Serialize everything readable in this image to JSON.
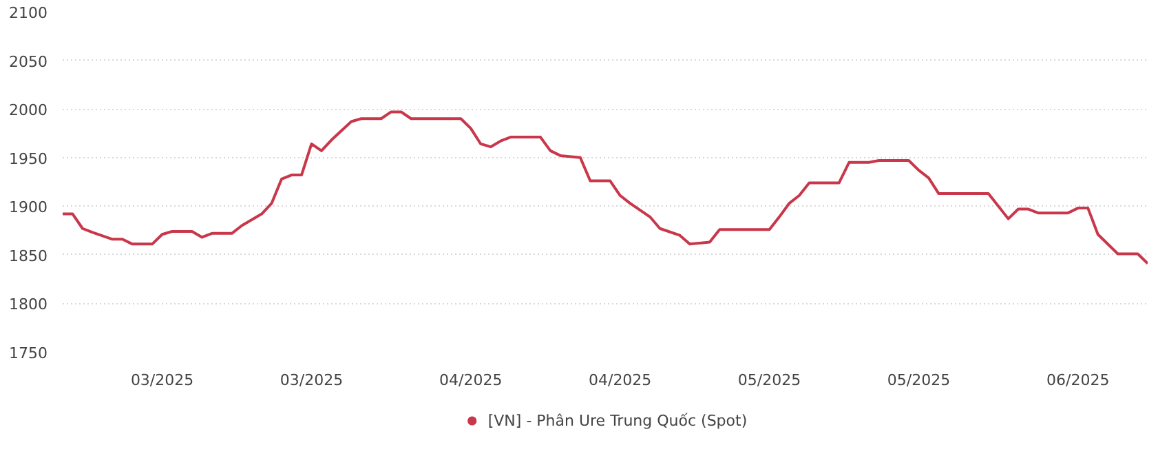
{
  "chart_data": {
    "type": "line",
    "x": [
      "2025-02-19",
      "2025-02-20",
      "2025-02-21",
      "2025-02-22",
      "2025-02-24",
      "2025-02-25",
      "2025-02-26",
      "2025-02-28",
      "2025-03-01",
      "2025-03-02",
      "2025-03-04",
      "2025-03-05",
      "2025-03-06",
      "2025-03-08",
      "2025-03-09",
      "2025-03-11",
      "2025-03-12",
      "2025-03-13",
      "2025-03-14",
      "2025-03-15",
      "2025-03-16",
      "2025-03-17",
      "2025-03-18",
      "2025-03-20",
      "2025-03-21",
      "2025-03-23",
      "2025-03-24",
      "2025-03-25",
      "2025-03-26",
      "2025-03-31",
      "2025-04-01",
      "2025-04-02",
      "2025-04-03",
      "2025-04-04",
      "2025-04-05",
      "2025-04-08",
      "2025-04-09",
      "2025-04-10",
      "2025-04-12",
      "2025-04-13",
      "2025-04-15",
      "2025-04-16",
      "2025-04-17",
      "2025-04-19",
      "2025-04-20",
      "2025-04-22",
      "2025-04-23",
      "2025-04-25",
      "2025-04-26",
      "2025-05-01",
      "2025-05-02",
      "2025-05-03",
      "2025-05-04",
      "2025-05-05",
      "2025-05-08",
      "2025-05-09",
      "2025-05-11",
      "2025-05-12",
      "2025-05-15",
      "2025-05-16",
      "2025-05-17",
      "2025-05-18",
      "2025-05-23",
      "2025-05-25",
      "2025-05-26",
      "2025-05-27",
      "2025-05-28",
      "2025-05-31",
      "2025-06-01",
      "2025-06-02",
      "2025-06-03",
      "2025-06-05",
      "2025-06-07",
      "2025-06-08"
    ],
    "series": [
      {
        "name": "[VN] - Phân Ure Trung Quốc (Spot)",
        "color": "#c8374a",
        "values": [
          1892,
          1892,
          1877,
          1873,
          1866,
          1866,
          1861,
          1861,
          1871,
          1874,
          1874,
          1868,
          1872,
          1872,
          1880,
          1892,
          1903,
          1928,
          1932,
          1932,
          1964,
          1957,
          1968,
          1987,
          1990,
          1990,
          1997,
          1997,
          1990,
          1990,
          1980,
          1964,
          1961,
          1967,
          1971,
          1971,
          1957,
          1952,
          1950,
          1926,
          1926,
          1911,
          1903,
          1889,
          1877,
          1870,
          1861,
          1863,
          1876,
          1876,
          1889,
          1903,
          1911,
          1924,
          1924,
          1945,
          1945,
          1947,
          1947,
          1937,
          1929,
          1913,
          1913,
          1887,
          1897,
          1897,
          1893,
          1893,
          1898,
          1898,
          1871,
          1851,
          1851,
          1841
        ]
      }
    ],
    "xlim": [
      "2025-02-19",
      "2025-06-08"
    ],
    "xticks": [
      {
        "value": "2025-03-01",
        "label": "03/2025"
      },
      {
        "value": "2025-03-16",
        "label": "03/2025"
      },
      {
        "value": "2025-04-01",
        "label": "04/2025"
      },
      {
        "value": "2025-04-16",
        "label": "04/2025"
      },
      {
        "value": "2025-05-01",
        "label": "05/2025"
      },
      {
        "value": "2025-05-16",
        "label": "05/2025"
      },
      {
        "value": "2025-06-01",
        "label": "06/2025"
      }
    ],
    "ylim": [
      1750,
      2100
    ],
    "yticks": [
      1750,
      1800,
      1850,
      1900,
      1950,
      2000,
      2050,
      2100
    ],
    "grid": "y",
    "legend": "bottom",
    "marker": "none",
    "line_style": "solid"
  }
}
